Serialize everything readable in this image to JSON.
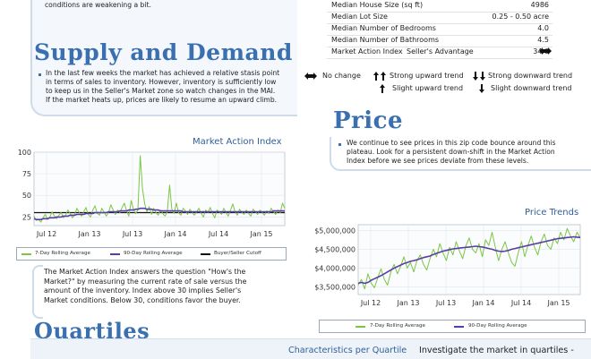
{
  "top_text": "conditions are weakening a bit.",
  "stats": [
    {
      "label": "Median House Size (sq ft)",
      "value": "4986"
    },
    {
      "label": "Median Lot Size",
      "value": "0.25 - 0.50 acre"
    },
    {
      "label": "Median Number of Bedrooms",
      "value": "4.0"
    },
    {
      "label": "Median Number of Bathrooms",
      "value": "4.5"
    },
    {
      "label": "Market Action Index",
      "mid": "Seller's Advantage",
      "value": "34.6"
    }
  ],
  "trend_legend": {
    "no_change": "No change",
    "strong_up": "Strong upward trend",
    "strong_down": "Strong downward trend",
    "slight_up": "Slight upward trend",
    "slight_down": "Slight downward trend"
  },
  "supply": {
    "heading": "Supply and Demand",
    "lines": [
      "In the last few weeks the market has achieved a relative stasis point",
      "in terms of sales to inventory.  However, inventory is sufficiently low",
      "to keep us in the Seller's Market zone so watch changes in the MAI.",
      "If the market heats up, prices are likely to resume an upward climb."
    ]
  },
  "price": {
    "heading": "Price",
    "lines": [
      "We continue to see prices in this zip code bounce around this",
      "plateau. Look for a persistent down-shift in the Market Action",
      "Index before we see prices deviate from these levels."
    ]
  },
  "mai_text": [
    "The Market Action Index answers the question \"How's the",
    "Market?\" by measuring the current rate of sale versus the",
    "amount of the inventory.  Index above 30 implies Seller's",
    "Market conditions. Below 30, conditions favor the buyer."
  ],
  "quartiles": {
    "heading": "Quartiles",
    "characteristics": "Characteristics per Quartile",
    "investigate": "Investigate the market in quartiles -"
  },
  "chart_data": [
    {
      "type": "line",
      "title": "Market Action Index",
      "x_tick_labels": [
        "Jul 12",
        "Jan 13",
        "Jul 13",
        "Jan 14",
        "Jul 14",
        "Jan 15"
      ],
      "y_tick_labels": [
        "25",
        "50",
        "75",
        "100"
      ],
      "ylim": [
        15,
        100
      ],
      "grid": true,
      "legend": [
        "7-Day Rolling Average",
        "90-Day Rolling Average",
        "Buyer/Seller Cutoff"
      ],
      "legend_placement": "bottom",
      "colors": {
        "7day": "#7bc744",
        "90day": "#5a3da8",
        "cutoff": "#111111"
      },
      "cutoff": 30,
      "series": [
        {
          "name": "7-Day Rolling Average",
          "values": [
            26,
            21,
            22,
            19,
            24,
            28,
            22,
            25,
            31,
            26,
            23,
            27,
            30,
            24,
            27,
            33,
            29,
            24,
            28,
            35,
            30,
            26,
            31,
            36,
            28,
            25,
            33,
            38,
            29,
            27,
            35,
            31,
            26,
            30,
            39,
            33,
            28,
            33,
            30,
            36,
            41,
            32,
            26,
            44,
            34,
            29,
            33,
            96,
            58,
            40,
            31,
            37,
            28,
            35,
            30,
            27,
            33,
            29,
            26,
            31,
            62,
            34,
            29,
            41,
            30,
            27,
            35,
            32,
            28,
            34,
            30,
            27,
            31,
            35,
            29,
            25,
            33,
            30,
            36,
            29,
            24,
            33,
            31,
            28,
            35,
            30,
            26,
            33,
            40,
            31,
            27,
            34,
            30,
            28,
            33,
            29,
            26,
            34,
            31,
            28,
            33,
            30,
            27,
            32,
            29,
            35,
            31,
            28,
            33,
            30,
            41,
            35
          ]
        },
        {
          "name": "90-Day Rolling Average",
          "values": [
            23,
            22,
            22,
            22,
            23,
            23,
            23,
            24,
            24,
            24,
            25,
            25,
            25,
            26,
            26,
            26,
            27,
            27,
            27,
            28,
            28,
            28,
            28,
            29,
            29,
            29,
            29,
            30,
            30,
            30,
            30,
            30,
            30,
            31,
            31,
            31,
            31,
            31,
            32,
            32,
            32,
            32,
            33,
            33,
            33,
            34,
            34,
            35,
            35,
            35,
            34,
            34,
            34,
            33,
            33,
            33,
            32,
            32,
            32,
            32,
            32,
            32,
            32,
            32,
            32,
            32,
            31,
            31,
            31,
            31,
            31,
            31,
            31,
            31,
            31,
            31,
            31,
            31,
            31,
            31,
            31,
            31,
            31,
            31,
            31,
            31,
            31,
            31,
            31,
            31,
            31,
            31,
            31,
            31,
            31,
            31,
            31,
            31,
            31,
            31,
            31,
            31,
            31,
            31,
            31,
            31,
            32,
            32,
            32,
            32,
            32,
            32
          ]
        }
      ]
    },
    {
      "type": "line",
      "title": "Price Trends",
      "x_tick_labels": [
        "Jul 12",
        "Jan 13",
        "Jul 13",
        "Jan 14",
        "Jul 14",
        "Jan 15"
      ],
      "y_tick_labels": [
        "$3,500,000",
        "$4,000,000",
        "$4,500,000",
        "$5,000,000"
      ],
      "ylim": [
        3300000,
        5150000
      ],
      "grid": true,
      "legend": [
        "7-Day Rolling Average",
        "90-Day Rolling Average"
      ],
      "legend_placement": "bottom",
      "colors": {
        "7day": "#7bc744",
        "90day": "#5a3da8"
      },
      "series": [
        {
          "name": "7-Day Rolling Average",
          "values": [
            3550000,
            3700000,
            3450000,
            3850000,
            3600000,
            3480000,
            3750000,
            3980000,
            3700000,
            3550000,
            3900000,
            4100000,
            3850000,
            4050000,
            4300000,
            4000000,
            4150000,
            3900000,
            4200000,
            4350000,
            4100000,
            3950000,
            4250000,
            4500000,
            4300000,
            4650000,
            4400000,
            4200000,
            4550000,
            4350000,
            4700000,
            4450000,
            4250000,
            4600000,
            4800000,
            4500000,
            4400000,
            4650000,
            4300000,
            4750000,
            4600000,
            4950000,
            4550000,
            4200000,
            4500000,
            4700000,
            4400000,
            4150000,
            4050000,
            4400000,
            4700000,
            4300000,
            4600000,
            4850000,
            4550000,
            4350000,
            4700000,
            4900000,
            4600000,
            4500000,
            4800000,
            4650000,
            4950000,
            4750000,
            5050000,
            4850000,
            4700000,
            4950000,
            4800000
          ]
        },
        {
          "name": "90-Day Rolling Average",
          "values": [
            3600000,
            3620000,
            3600000,
            3620000,
            3680000,
            3720000,
            3760000,
            3800000,
            3850000,
            3900000,
            3950000,
            4000000,
            4040000,
            4080000,
            4120000,
            4150000,
            4180000,
            4200000,
            4220000,
            4250000,
            4280000,
            4300000,
            4320000,
            4360000,
            4390000,
            4420000,
            4450000,
            4470000,
            4490000,
            4510000,
            4520000,
            4530000,
            4540000,
            4550000,
            4560000,
            4570000,
            4580000,
            4570000,
            4560000,
            4540000,
            4520000,
            4500000,
            4470000,
            4450000,
            4440000,
            4450000,
            4470000,
            4500000,
            4520000,
            4540000,
            4560000,
            4580000,
            4600000,
            4620000,
            4640000,
            4660000,
            4680000,
            4700000,
            4720000,
            4740000,
            4760000,
            4780000,
            4790000,
            4800000,
            4810000,
            4820000,
            4830000,
            4820000,
            4810000
          ]
        }
      ]
    }
  ]
}
